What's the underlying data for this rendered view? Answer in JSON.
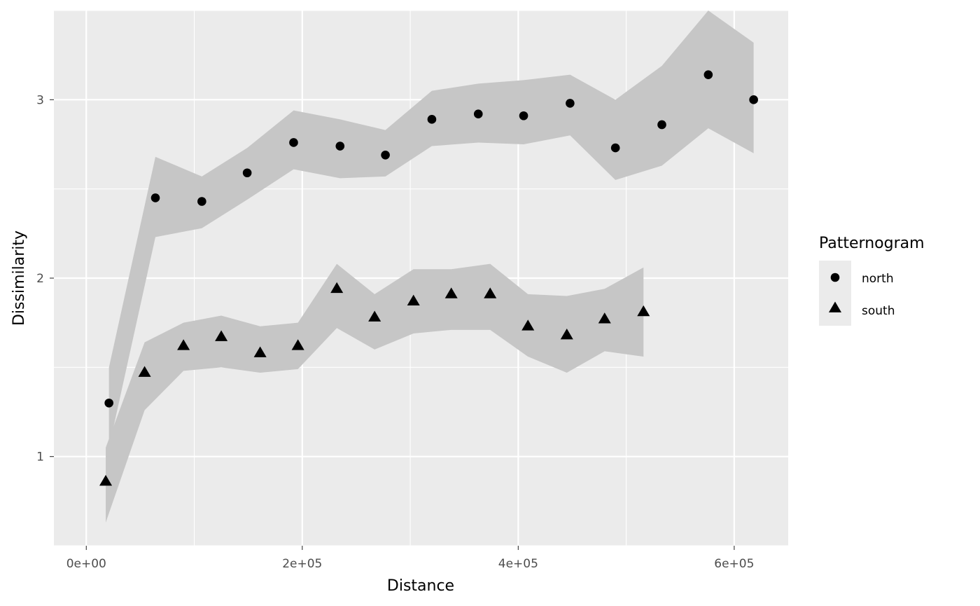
{
  "chart_data": {
    "type": "scatter",
    "xlabel": "Distance",
    "ylabel": "Dissimilarity",
    "xlim": [
      -30000,
      650000
    ],
    "ylim": [
      0.5,
      3.5
    ],
    "x_ticks": [
      0,
      200000,
      400000,
      600000
    ],
    "x_tick_labels": [
      "0e+00",
      "2e+05",
      "4e+05",
      "6e+05"
    ],
    "y_ticks": [
      1,
      2,
      3
    ],
    "y_tick_labels": [
      "1",
      "2",
      "3"
    ],
    "grid": true,
    "legend_title": "Patternogram",
    "legend_position": "right",
    "ribbon_color": "#c6c6c6",
    "panel_color": "#ebebeb",
    "series": [
      {
        "name": "north",
        "shape": "circle",
        "points": [
          {
            "x": 21000,
            "y": 1.3,
            "lo": 1.05,
            "hi": 1.5
          },
          {
            "x": 64000,
            "y": 2.45,
            "lo": 2.23,
            "hi": 2.68
          },
          {
            "x": 107000,
            "y": 2.43,
            "lo": 2.28,
            "hi": 2.57
          },
          {
            "x": 149000,
            "y": 2.59,
            "lo": 2.44,
            "hi": 2.73
          },
          {
            "x": 192000,
            "y": 2.76,
            "lo": 2.61,
            "hi": 2.94
          },
          {
            "x": 235000,
            "y": 2.74,
            "lo": 2.56,
            "hi": 2.89
          },
          {
            "x": 277000,
            "y": 2.69,
            "lo": 2.57,
            "hi": 2.83
          },
          {
            "x": 320000,
            "y": 2.89,
            "lo": 2.74,
            "hi": 3.05
          },
          {
            "x": 363000,
            "y": 2.92,
            "lo": 2.76,
            "hi": 3.09
          },
          {
            "x": 405000,
            "y": 2.91,
            "lo": 2.75,
            "hi": 3.11
          },
          {
            "x": 448000,
            "y": 2.98,
            "lo": 2.8,
            "hi": 3.14
          },
          {
            "x": 490000,
            "y": 2.73,
            "lo": 2.55,
            "hi": 3.0
          },
          {
            "x": 533000,
            "y": 2.86,
            "lo": 2.63,
            "hi": 3.19
          },
          {
            "x": 576000,
            "y": 3.14,
            "lo": 2.84,
            "hi": 3.5
          },
          {
            "x": 618000,
            "y": 3.0,
            "lo": 2.7,
            "hi": 3.32
          }
        ]
      },
      {
        "name": "south",
        "shape": "triangle",
        "points": [
          {
            "x": 18000,
            "y": 0.86,
            "lo": 0.63,
            "hi": 1.05
          },
          {
            "x": 54000,
            "y": 1.47,
            "lo": 1.26,
            "hi": 1.64
          },
          {
            "x": 90000,
            "y": 1.62,
            "lo": 1.48,
            "hi": 1.75
          },
          {
            "x": 125000,
            "y": 1.67,
            "lo": 1.5,
            "hi": 1.79
          },
          {
            "x": 161000,
            "y": 1.58,
            "lo": 1.47,
            "hi": 1.73
          },
          {
            "x": 196000,
            "y": 1.62,
            "lo": 1.49,
            "hi": 1.75
          },
          {
            "x": 232000,
            "y": 1.94,
            "lo": 1.72,
            "hi": 2.08
          },
          {
            "x": 267000,
            "y": 1.78,
            "lo": 1.6,
            "hi": 1.91
          },
          {
            "x": 303000,
            "y": 1.87,
            "lo": 1.69,
            "hi": 2.05
          },
          {
            "x": 338000,
            "y": 1.91,
            "lo": 1.71,
            "hi": 2.05
          },
          {
            "x": 374000,
            "y": 1.91,
            "lo": 1.71,
            "hi": 2.08
          },
          {
            "x": 409000,
            "y": 1.73,
            "lo": 1.56,
            "hi": 1.91
          },
          {
            "x": 445000,
            "y": 1.68,
            "lo": 1.47,
            "hi": 1.9
          },
          {
            "x": 480000,
            "y": 1.77,
            "lo": 1.59,
            "hi": 1.94
          },
          {
            "x": 516000,
            "y": 1.81,
            "lo": 1.56,
            "hi": 2.06
          }
        ]
      }
    ]
  }
}
